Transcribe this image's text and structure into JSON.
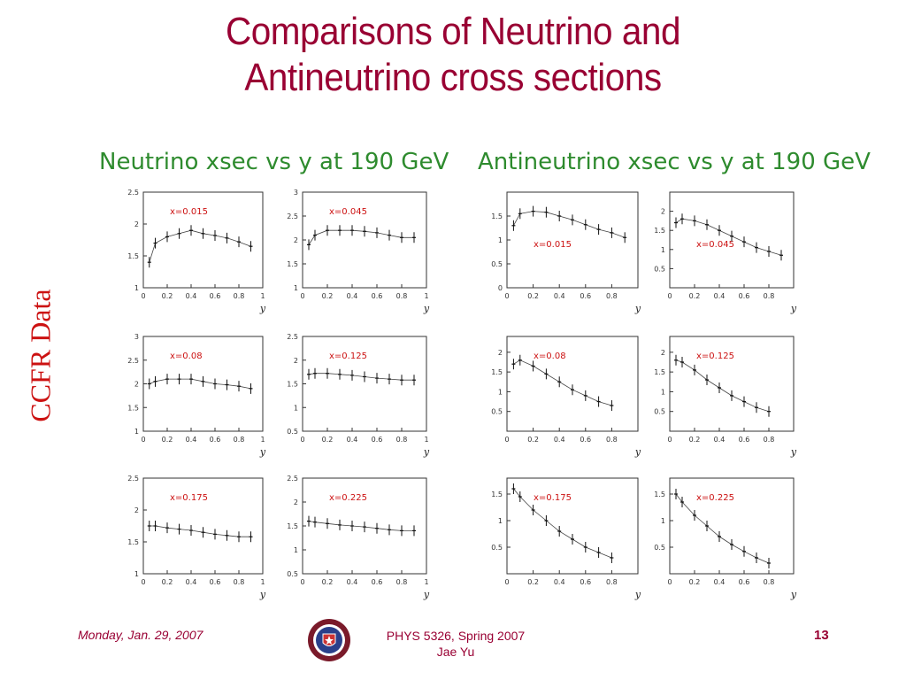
{
  "slide": {
    "title_line1": "Comparisons of Neutrino and",
    "title_line2": "Antineutrino cross sections",
    "left_heading": "Neutrino xsec vs y at 190 GeV",
    "right_heading": "Antineutrino xsec vs y at 190 GeV",
    "side_label": "CCFR Data",
    "footer_date": "Monday, Jan. 29, 2007",
    "footer_course": "PHYS 5326, Spring 2007",
    "footer_author": "Jae Yu",
    "page_number": "13"
  },
  "colors": {
    "title": "#990033",
    "heading": "#2e8b2e",
    "side_label": "#cc1111",
    "annotation": "#cc1111"
  },
  "chart_data": [
    {
      "type": "scatter",
      "panel": "neutrino",
      "x_label_text": "x=0.015",
      "xlabel": "y",
      "ylim": [
        1,
        2.5
      ],
      "yticks": [
        "1",
        "1.5",
        "2",
        "2.5"
      ],
      "xticks": [
        "0",
        "0.2",
        "0.4",
        "0.6",
        "0.8",
        "1"
      ],
      "x": [
        0.05,
        0.1,
        0.2,
        0.3,
        0.4,
        0.5,
        0.6,
        0.7,
        0.8,
        0.9
      ],
      "values": [
        1.4,
        1.7,
        1.8,
        1.85,
        1.9,
        1.85,
        1.82,
        1.78,
        1.72,
        1.65
      ]
    },
    {
      "type": "scatter",
      "panel": "neutrino",
      "x_label_text": "x=0.045",
      "xlabel": "y",
      "ylim": [
        1,
        3
      ],
      "yticks": [
        "1",
        "1.5",
        "2",
        "2.5",
        "3"
      ],
      "xticks": [
        "0",
        "0.2",
        "0.4",
        "0.6",
        "0.8",
        "1"
      ],
      "x": [
        0.05,
        0.1,
        0.2,
        0.3,
        0.4,
        0.5,
        0.6,
        0.7,
        0.8,
        0.9
      ],
      "values": [
        1.9,
        2.1,
        2.2,
        2.2,
        2.2,
        2.18,
        2.15,
        2.1,
        2.05,
        2.05
      ]
    },
    {
      "type": "scatter",
      "panel": "neutrino",
      "x_label_text": "x=0.08",
      "xlabel": "y",
      "ylim": [
        1,
        3
      ],
      "yticks": [
        "1",
        "1.5",
        "2",
        "2.5",
        "3"
      ],
      "xticks": [
        "0",
        "0.2",
        "0.4",
        "0.6",
        "0.8",
        "1"
      ],
      "x": [
        0.05,
        0.1,
        0.2,
        0.3,
        0.4,
        0.5,
        0.6,
        0.7,
        0.8,
        0.9
      ],
      "values": [
        2.0,
        2.05,
        2.1,
        2.1,
        2.1,
        2.05,
        2.0,
        1.98,
        1.95,
        1.9
      ]
    },
    {
      "type": "scatter",
      "panel": "neutrino",
      "x_label_text": "x=0.125",
      "xlabel": "y",
      "ylim": [
        0.5,
        2.5
      ],
      "yticks": [
        "0.5",
        "1",
        "1.5",
        "2",
        "2.5"
      ],
      "xticks": [
        "0",
        "0.2",
        "0.4",
        "0.6",
        "0.8",
        "1"
      ],
      "x": [
        0.05,
        0.1,
        0.2,
        0.3,
        0.4,
        0.5,
        0.6,
        0.7,
        0.8,
        0.9
      ],
      "values": [
        1.7,
        1.72,
        1.72,
        1.7,
        1.68,
        1.65,
        1.62,
        1.6,
        1.58,
        1.58
      ]
    },
    {
      "type": "scatter",
      "panel": "neutrino",
      "x_label_text": "x=0.175",
      "xlabel": "y",
      "ylim": [
        1,
        2.5
      ],
      "yticks": [
        "1",
        "1.5",
        "2",
        "2.5"
      ],
      "xticks": [
        "0",
        "0.2",
        "0.4",
        "0.6",
        "0.8",
        "1"
      ],
      "x": [
        0.05,
        0.1,
        0.2,
        0.3,
        0.4,
        0.5,
        0.6,
        0.7,
        0.8,
        0.9
      ],
      "values": [
        1.75,
        1.75,
        1.72,
        1.7,
        1.68,
        1.65,
        1.62,
        1.6,
        1.58,
        1.58
      ]
    },
    {
      "type": "scatter",
      "panel": "neutrino",
      "x_label_text": "x=0.225",
      "xlabel": "y",
      "ylim": [
        0.5,
        2.5
      ],
      "yticks": [
        "0.5",
        "1",
        "1.5",
        "2",
        "2.5"
      ],
      "xticks": [
        "0",
        "0.2",
        "0.4",
        "0.6",
        "0.8",
        "1"
      ],
      "x": [
        0.05,
        0.1,
        0.2,
        0.3,
        0.4,
        0.5,
        0.6,
        0.7,
        0.8,
        0.9
      ],
      "values": [
        1.6,
        1.58,
        1.55,
        1.52,
        1.5,
        1.48,
        1.45,
        1.42,
        1.4,
        1.4
      ]
    },
    {
      "type": "scatter",
      "panel": "antineutrino",
      "x_label_text": "x=0.015",
      "xlabel": "y",
      "ylim": [
        0,
        2
      ],
      "yticks": [
        "0",
        "0.5",
        "1",
        "1.5"
      ],
      "xticks": [
        "0",
        "0.2",
        "0.4",
        "0.6",
        "0.8"
      ],
      "x": [
        0.05,
        0.1,
        0.2,
        0.3,
        0.4,
        0.5,
        0.6,
        0.7,
        0.8,
        0.9
      ],
      "values": [
        1.3,
        1.55,
        1.6,
        1.58,
        1.5,
        1.42,
        1.32,
        1.22,
        1.15,
        1.05
      ]
    },
    {
      "type": "scatter",
      "panel": "antineutrino",
      "x_label_text": "x=0.045",
      "xlabel": "y",
      "ylim": [
        0,
        2.5
      ],
      "yticks": [
        "0.5",
        "1",
        "1.5",
        "2"
      ],
      "xticks": [
        "0",
        "0.2",
        "0.4",
        "0.6",
        "0.8"
      ],
      "x": [
        0.05,
        0.1,
        0.2,
        0.3,
        0.4,
        0.5,
        0.6,
        0.7,
        0.8,
        0.9
      ],
      "values": [
        1.7,
        1.8,
        1.75,
        1.65,
        1.5,
        1.35,
        1.2,
        1.05,
        0.95,
        0.85
      ]
    },
    {
      "type": "scatter",
      "panel": "antineutrino",
      "x_label_text": "x=0.08",
      "xlabel": "y",
      "ylim": [
        0,
        2.4
      ],
      "yticks": [
        "0.5",
        "1",
        "1.5",
        "2"
      ],
      "xticks": [
        "0",
        "0.2",
        "0.4",
        "0.6",
        "0.8"
      ],
      "x": [
        0.05,
        0.1,
        0.2,
        0.3,
        0.4,
        0.5,
        0.6,
        0.7,
        0.8
      ],
      "values": [
        1.7,
        1.8,
        1.65,
        1.45,
        1.25,
        1.05,
        0.9,
        0.75,
        0.65
      ]
    },
    {
      "type": "scatter",
      "panel": "antineutrino",
      "x_label_text": "x=0.125",
      "xlabel": "y",
      "ylim": [
        0,
        2.4
      ],
      "yticks": [
        "0.5",
        "1",
        "1.5",
        "2"
      ],
      "xticks": [
        "0",
        "0.2",
        "0.4",
        "0.6",
        "0.8"
      ],
      "x": [
        0.05,
        0.1,
        0.2,
        0.3,
        0.4,
        0.5,
        0.6,
        0.7,
        0.8
      ],
      "values": [
        1.8,
        1.75,
        1.55,
        1.3,
        1.1,
        0.9,
        0.75,
        0.6,
        0.5
      ]
    },
    {
      "type": "scatter",
      "panel": "antineutrino",
      "x_label_text": "x=0.175",
      "xlabel": "y",
      "ylim": [
        0,
        1.8
      ],
      "yticks": [
        "0.5",
        "1",
        "1.5"
      ],
      "xticks": [
        "0",
        "0.2",
        "0.4",
        "0.6",
        "0.8"
      ],
      "x": [
        0.05,
        0.1,
        0.2,
        0.3,
        0.4,
        0.5,
        0.6,
        0.7,
        0.8
      ],
      "values": [
        1.6,
        1.45,
        1.2,
        1.0,
        0.8,
        0.65,
        0.5,
        0.4,
        0.3
      ]
    },
    {
      "type": "scatter",
      "panel": "antineutrino",
      "x_label_text": "x=0.225",
      "xlabel": "y",
      "ylim": [
        0,
        1.8
      ],
      "yticks": [
        "0.5",
        "1",
        "1.5"
      ],
      "xticks": [
        "0",
        "0.2",
        "0.4",
        "0.6",
        "0.8"
      ],
      "x": [
        0.05,
        0.1,
        0.2,
        0.3,
        0.4,
        0.5,
        0.6,
        0.7,
        0.8
      ],
      "values": [
        1.5,
        1.35,
        1.1,
        0.9,
        0.7,
        0.55,
        0.42,
        0.3,
        0.2
      ]
    }
  ]
}
